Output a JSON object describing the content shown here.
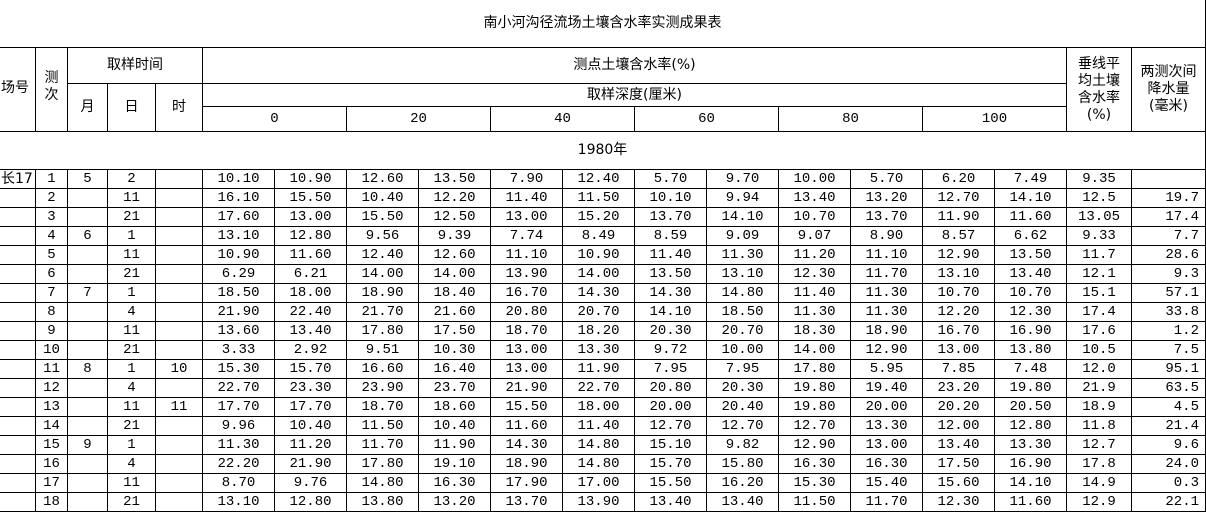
{
  "header": {
    "title": "南小河沟径流场土壤含水率实测成果表",
    "site": "场号",
    "count": [
      "测",
      "次"
    ],
    "sample_time": "取样时间",
    "month": "月",
    "day": "日",
    "hour": "时",
    "moisture": "测点土壤含水率(%)",
    "depth": "取样深度(厘米)",
    "depths": [
      "0",
      "20",
      "40",
      "60",
      "80",
      "100"
    ],
    "avg": [
      "垂线平",
      "均土壤",
      "含水率",
      "(%)"
    ],
    "rain": [
      "两测次间",
      "降水量",
      "(毫米)"
    ],
    "year": "1980年"
  },
  "table": {
    "rows": [
      [
        "长17",
        "1",
        "5",
        "2",
        null,
        "10.10",
        "10.90",
        "12.60",
        "13.50",
        "7.90",
        "12.40",
        "5.70",
        "9.70",
        "10.00",
        "5.70",
        "6.20",
        "7.49",
        "9.35",
        null
      ],
      [
        null,
        "2",
        null,
        "11",
        null,
        "16.10",
        "15.50",
        "10.40",
        "12.20",
        "11.40",
        "11.50",
        "10.10",
        "9.94",
        "13.40",
        "13.20",
        "12.70",
        "14.10",
        "12.5",
        "19.7"
      ],
      [
        null,
        "3",
        null,
        "21",
        null,
        "17.60",
        "13.00",
        "15.50",
        "12.50",
        "13.00",
        "15.20",
        "13.70",
        "14.10",
        "10.70",
        "13.70",
        "11.90",
        "11.60",
        "13.05",
        "17.4"
      ],
      [
        null,
        "4",
        "6",
        "1",
        null,
        "13.10",
        "12.80",
        "9.56",
        "9.39",
        "7.74",
        "8.49",
        "8.59",
        "9.09",
        "9.07",
        "8.90",
        "8.57",
        "6.62",
        "9.33",
        "7.7"
      ],
      [
        null,
        "5",
        null,
        "11",
        null,
        "10.90",
        "11.60",
        "12.40",
        "12.60",
        "11.10",
        "10.90",
        "11.40",
        "11.30",
        "11.20",
        "11.10",
        "12.90",
        "13.50",
        "11.7",
        "28.6"
      ],
      [
        null,
        "6",
        null,
        "21",
        null,
        "6.29",
        "6.21",
        "14.00",
        "14.00",
        "13.90",
        "14.00",
        "13.50",
        "13.10",
        "12.30",
        "11.70",
        "13.10",
        "13.40",
        "12.1",
        "9.3"
      ],
      [
        null,
        "7",
        "7",
        "1",
        null,
        "18.50",
        "18.00",
        "18.90",
        "18.40",
        "16.70",
        "14.30",
        "14.30",
        "14.80",
        "11.40",
        "11.30",
        "10.70",
        "10.70",
        "15.1",
        "57.1"
      ],
      [
        null,
        "8",
        null,
        "4",
        null,
        "21.90",
        "22.40",
        "21.70",
        "21.60",
        "20.80",
        "20.70",
        "14.10",
        "18.50",
        "11.30",
        "11.30",
        "12.20",
        "12.30",
        "17.4",
        "33.8"
      ],
      [
        null,
        "9",
        null,
        "11",
        null,
        "13.60",
        "13.40",
        "17.80",
        "17.50",
        "18.70",
        "18.20",
        "20.30",
        "20.70",
        "18.30",
        "18.90",
        "16.70",
        "16.90",
        "17.6",
        "1.2"
      ],
      [
        null,
        "10",
        null,
        "21",
        null,
        "3.33",
        "2.92",
        "9.51",
        "10.30",
        "13.00",
        "13.30",
        "9.72",
        "10.00",
        "14.00",
        "12.90",
        "13.00",
        "13.80",
        "10.5",
        "7.5"
      ],
      [
        null,
        "11",
        "8",
        "1",
        "10",
        "15.30",
        "15.70",
        "16.60",
        "16.40",
        "13.00",
        "11.90",
        "7.95",
        "7.95",
        "17.80",
        "5.95",
        "7.85",
        "7.48",
        "12.0",
        "95.1"
      ],
      [
        null,
        "12",
        null,
        "4",
        null,
        "22.70",
        "23.30",
        "23.90",
        "23.70",
        "21.90",
        "22.70",
        "20.80",
        "20.30",
        "19.80",
        "19.40",
        "23.20",
        "19.80",
        "21.9",
        "63.5"
      ],
      [
        null,
        "13",
        null,
        "11",
        "11",
        "17.70",
        "17.70",
        "18.70",
        "18.60",
        "15.50",
        "18.00",
        "20.00",
        "20.40",
        "19.80",
        "20.00",
        "20.20",
        "20.50",
        "18.9",
        "4.5"
      ],
      [
        null,
        "14",
        null,
        "21",
        null,
        "9.96",
        "10.40",
        "11.50",
        "10.40",
        "11.60",
        "11.40",
        "12.70",
        "12.70",
        "12.70",
        "13.30",
        "12.00",
        "12.80",
        "11.8",
        "21.4"
      ],
      [
        null,
        "15",
        "9",
        "1",
        null,
        "11.30",
        "11.20",
        "11.70",
        "11.90",
        "14.30",
        "14.80",
        "15.10",
        "9.82",
        "12.90",
        "13.00",
        "13.40",
        "13.30",
        "12.7",
        "9.6"
      ],
      [
        null,
        "16",
        null,
        "4",
        null,
        "22.20",
        "21.90",
        "17.80",
        "19.10",
        "18.90",
        "14.80",
        "15.70",
        "15.80",
        "16.30",
        "16.30",
        "17.50",
        "16.90",
        "17.8",
        "24.0"
      ],
      [
        null,
        "17",
        null,
        "11",
        null,
        "8.70",
        "9.76",
        "14.80",
        "16.30",
        "17.90",
        "17.00",
        "15.50",
        "16.20",
        "15.30",
        "15.40",
        "15.60",
        "14.10",
        "14.9",
        "0.3"
      ],
      [
        null,
        "18",
        null,
        "21",
        null,
        "13.10",
        "12.80",
        "13.80",
        "13.20",
        "13.70",
        "13.90",
        "13.40",
        "13.40",
        "11.50",
        "11.70",
        "12.30",
        "11.60",
        "12.9",
        "22.1"
      ]
    ]
  }
}
